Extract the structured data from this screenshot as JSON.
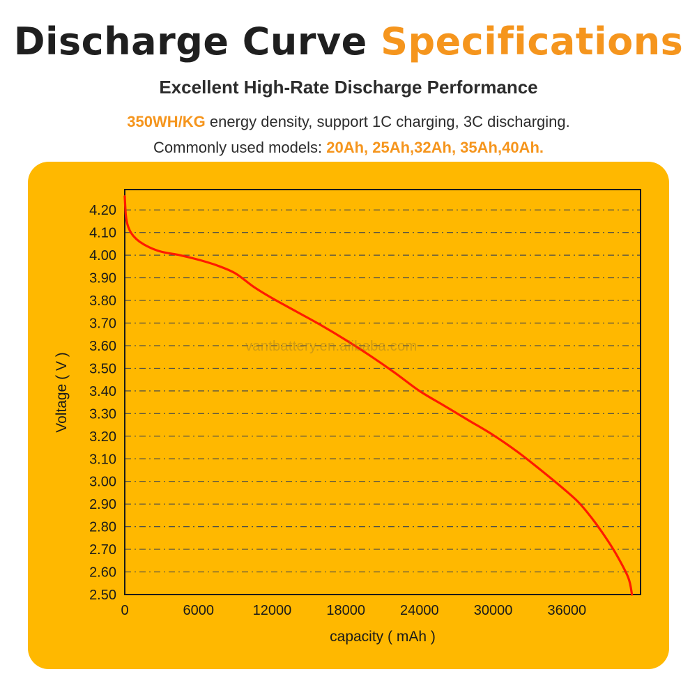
{
  "header": {
    "title_main": "Discharge Curve",
    "title_accent": "Specifications",
    "subtitle": "Excellent High-Rate Discharge Performance",
    "line1_highlight": "350WH/KG",
    "line1_text": " energy density, support 1C charging, 3C discharging.",
    "line2_text": "Commonly used models: ",
    "line2_highlight": "20Ah, 25Ah,32Ah, 35Ah,40Ah."
  },
  "watermark": "vantbattery.en.alibaba.com",
  "colors": {
    "accent": "#f5951d",
    "panel": "#ffb800",
    "curve": "#ff1a00"
  },
  "chart_data": {
    "type": "line",
    "title": "",
    "xlabel": "capacity ( mAh )",
    "ylabel": "Voltage ( V )",
    "xlim": [
      0,
      42000
    ],
    "ylim": [
      2.5,
      4.29
    ],
    "x_ticks": [
      0,
      6000,
      12000,
      18000,
      24000,
      30000,
      36000
    ],
    "x_tick_labels": [
      "0",
      "6000",
      "12000",
      "18000",
      "24000",
      "30000",
      "36000"
    ],
    "y_ticks": [
      2.5,
      2.6,
      2.7,
      2.8,
      2.9,
      3.0,
      3.1,
      3.2,
      3.3,
      3.4,
      3.5,
      3.6,
      3.7,
      3.8,
      3.9,
      4.0,
      4.1,
      4.2
    ],
    "y_tick_labels": [
      "2.50",
      "2.60",
      "2.70",
      "2.80",
      "2.90",
      "3.00",
      "3.10",
      "3.20",
      "3.30",
      "3.40",
      "3.50",
      "3.60",
      "3.70",
      "3.80",
      "3.90",
      "4.00",
      "4.10",
      "4.20"
    ],
    "grid": "horizontal dash-dot",
    "series": [
      {
        "name": "discharge",
        "x": [
          0,
          80,
          200,
          400,
          700,
          1200,
          2000,
          3000,
          4500,
          6000,
          7500,
          9000,
          10500,
          12000,
          14000,
          16000,
          18000,
          20000,
          22000,
          24000,
          26000,
          28000,
          30000,
          32000,
          34000,
          36000,
          37000,
          38000,
          39000,
          40000,
          41000,
          41300
        ],
        "y": [
          4.26,
          4.18,
          4.14,
          4.11,
          4.085,
          4.06,
          4.035,
          4.015,
          4.0,
          3.98,
          3.955,
          3.92,
          3.86,
          3.81,
          3.75,
          3.69,
          3.625,
          3.555,
          3.48,
          3.4,
          3.335,
          3.27,
          3.205,
          3.13,
          3.045,
          2.955,
          2.905,
          2.84,
          2.765,
          2.68,
          2.575,
          2.5
        ]
      }
    ]
  }
}
